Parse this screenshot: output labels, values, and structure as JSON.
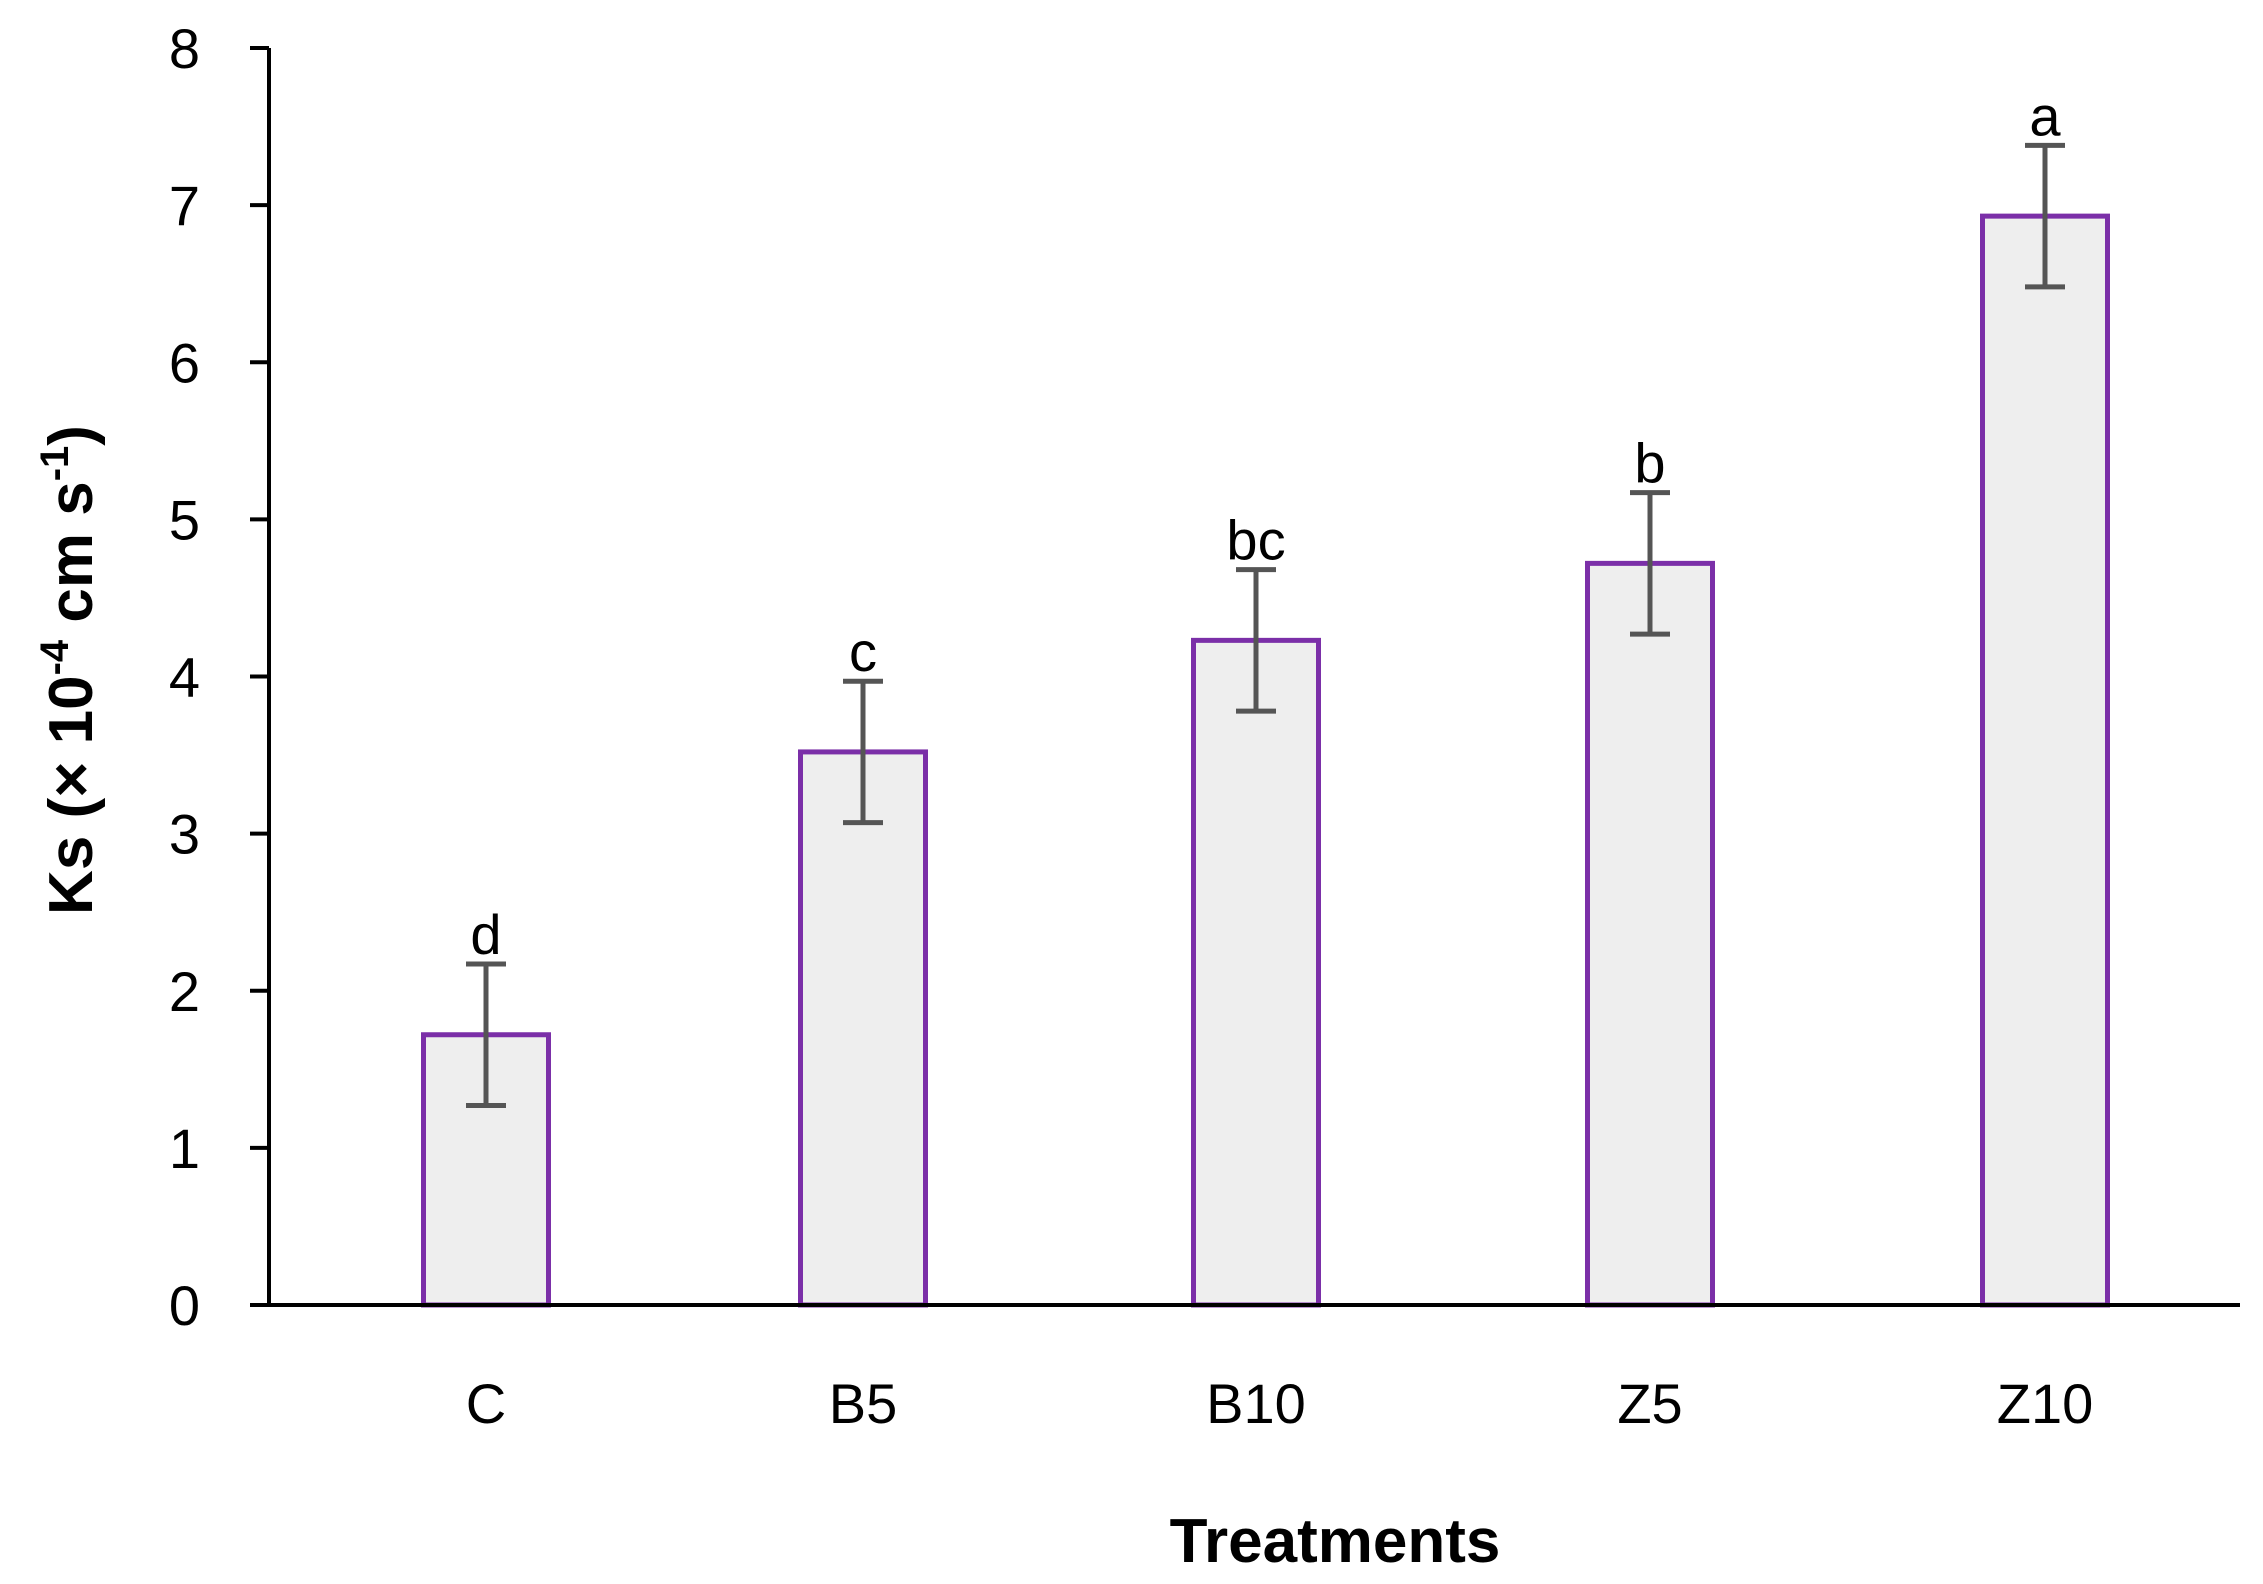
{
  "chart_data": {
    "type": "bar",
    "title": "",
    "xlabel": "Treatments",
    "ylabel": {
      "prefix": "Ks (× 10",
      "exp1": "-4",
      "middle": " cm s",
      "exp2": "-1",
      "suffix": ")"
    },
    "categories": [
      "C",
      "B5",
      "B10",
      "Z5",
      "Z10"
    ],
    "values": [
      1.72,
      3.52,
      4.23,
      4.72,
      6.93
    ],
    "errors": [
      0.45,
      0.45,
      0.45,
      0.45,
      0.45
    ],
    "significance_letters": [
      "d",
      "c",
      "bc",
      "b",
      "a"
    ],
    "ylim": [
      0,
      8
    ],
    "yticks": [
      0,
      1,
      2,
      3,
      4,
      5,
      6,
      7,
      8
    ],
    "grid": false,
    "legend": "none",
    "colors": {
      "bar_fill": "#eeeeee",
      "bar_edge": "#7b2fa8",
      "error_bar": "#555555",
      "axis": "#000000"
    }
  }
}
